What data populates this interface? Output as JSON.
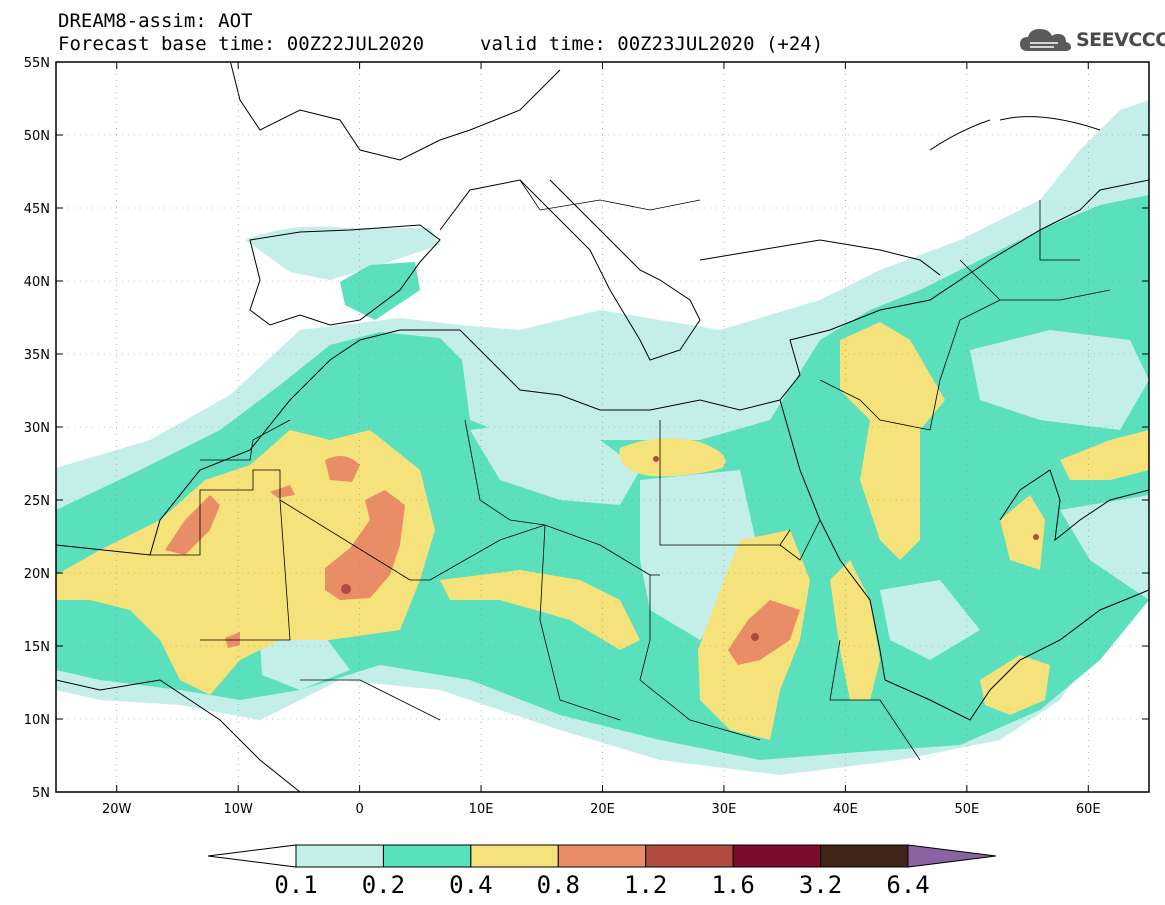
{
  "header": {
    "title": "DREAM8-assim: AOT",
    "base_time": "Forecast base time: 00Z22JUL2020",
    "valid_time": "valid time: 00Z23JUL2020 (+24)",
    "logo_text": "SEEVCCC"
  },
  "map": {
    "lon_range": [
      -25,
      65
    ],
    "lat_range": [
      5,
      55
    ],
    "lat_labels": [
      "55N",
      "50N",
      "45N",
      "40N",
      "35N",
      "30N",
      "25N",
      "20N",
      "15N",
      "10N",
      "5N"
    ],
    "lat_values": [
      55,
      50,
      45,
      40,
      35,
      30,
      25,
      20,
      15,
      10,
      5
    ],
    "lon_labels": [
      "20W",
      "10W",
      "0",
      "10E",
      "20E",
      "30E",
      "40E",
      "50E",
      "60E"
    ],
    "lon_values": [
      -20,
      -10,
      0,
      10,
      20,
      30,
      40,
      50,
      60
    ],
    "field": "Aerosol optical thickness (AOT) forecast over North Africa, Middle East and Mediterranean"
  },
  "colorbar": {
    "levels": [
      "0.1",
      "0.2",
      "0.4",
      "0.8",
      "1.2",
      "1.6",
      "3.2",
      "6.4"
    ],
    "colors": [
      "#ffffff",
      "#c4efe9",
      "#5be0be",
      "#f6e27a",
      "#e98d66",
      "#b14a3f",
      "#7d0b2c",
      "#3f2518",
      "#8a63a3"
    ]
  }
}
